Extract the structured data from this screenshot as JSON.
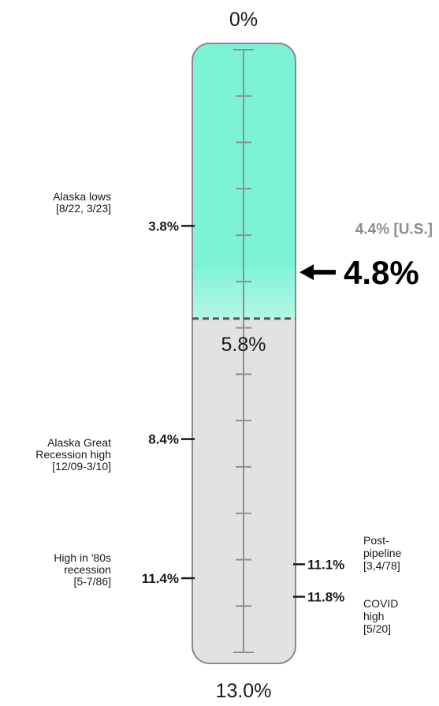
{
  "chart_data": {
    "type": "gauge",
    "scale_label_top": "0%",
    "scale_label_bottom": "13.0%",
    "range": [
      0,
      13.0
    ],
    "major_ticks_every": 1,
    "thresholds": [
      {
        "value": 5.8,
        "label": "5.8%"
      }
    ],
    "colors": {
      "low_zone": "#7df3d6",
      "low_zone_fade": "#b5f7e5",
      "high_zone": "#e2e2e2",
      "outline": "#8a8a8a",
      "axis": "#8f8f8f",
      "text": "#1a1a1a",
      "muted_text": "#8d8d8d"
    },
    "current": {
      "value": 4.8,
      "label": "4.8%"
    },
    "comparison": {
      "value": 4.4,
      "label": "4.4% [U.S.]"
    },
    "annotations": [
      {
        "value": 3.8,
        "label": "3.8%",
        "side": "left",
        "note": [
          "Alaska lows",
          "[8/22, 3/23]"
        ]
      },
      {
        "value": 8.4,
        "label": "8.4%",
        "side": "left",
        "note": [
          "Alaska Great",
          "Recession high",
          "[12/09-3/10]"
        ]
      },
      {
        "value": 11.4,
        "label": "11.4%",
        "side": "left",
        "note": [
          "High in '80s",
          "recession",
          "[5-7/86]"
        ]
      },
      {
        "value": 11.1,
        "label": "11.1%",
        "side": "right",
        "note": [
          "Post-",
          "pipeline",
          "[3,4/78]"
        ]
      },
      {
        "value": 11.8,
        "label": "11.8%",
        "side": "right",
        "note": [
          "COVID",
          "high",
          "[5/20]"
        ]
      }
    ]
  }
}
